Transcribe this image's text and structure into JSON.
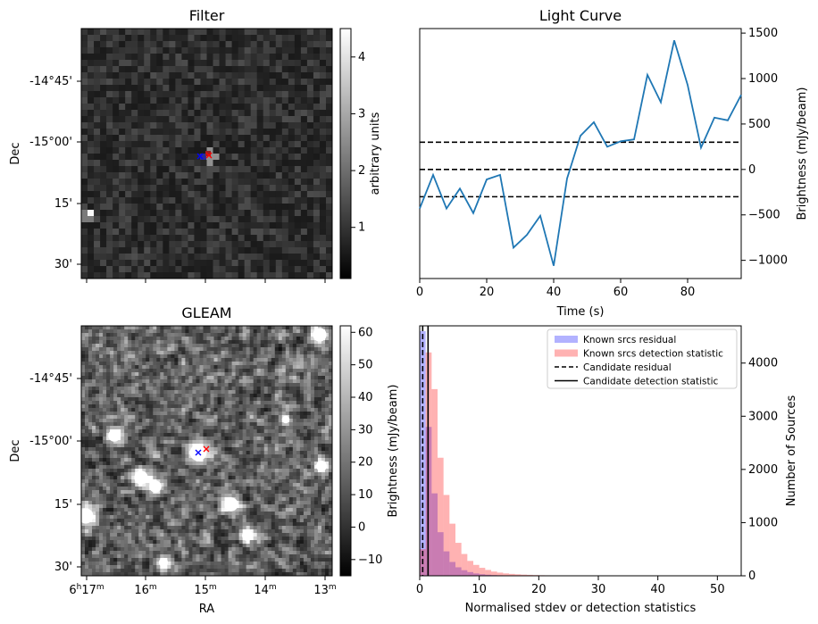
{
  "chart_data": [
    {
      "type": "heatmap",
      "title": "Filter",
      "ylabel": "Dec",
      "colorbar": {
        "label": "arbitrary units",
        "range": [
          0.1,
          4.5
        ],
        "ticks": [
          "1",
          "2",
          "3",
          "4"
        ],
        "tick_values": [
          1,
          2,
          3,
          4
        ],
        "colormap": "gray"
      },
      "y_tick_labels": [
        "-14°45'",
        "-15°00'",
        "15'",
        "30'"
      ],
      "y_tick_values_arcmin": [
        -14.75,
        -15.0,
        -15.25,
        -15.5
      ],
      "markers": [
        {
          "name": "candidate",
          "symbol": "x",
          "color": "#ff0000"
        },
        {
          "name": "known",
          "symbol": "x",
          "color": "#0000ff"
        }
      ]
    },
    {
      "type": "line",
      "title": "Light Curve",
      "xlabel": "Time (s)",
      "ylabel": "Brightness (mJy/beam)",
      "xlim": [
        0,
        96
      ],
      "ylim": [
        -1200,
        1550
      ],
      "x_ticks": [
        0,
        20,
        40,
        60,
        80
      ],
      "y_ticks": [
        -1000,
        -500,
        0,
        500,
        1000,
        1500
      ],
      "x": [
        0,
        4,
        8,
        12,
        16,
        20,
        24,
        28,
        32,
        36,
        40,
        44,
        48,
        52,
        56,
        60,
        64,
        68,
        72,
        76,
        80,
        84,
        88,
        92,
        96
      ],
      "y": [
        -430,
        -60,
        -430,
        -210,
        -480,
        -110,
        -60,
        -860,
        -720,
        -510,
        -1060,
        -100,
        370,
        520,
        250,
        310,
        330,
        1040,
        740,
        1420,
        930,
        240,
        570,
        540,
        820
      ],
      "hlines": [
        300,
        0,
        -300
      ],
      "line_color": "#1f77b4"
    },
    {
      "type": "heatmap",
      "title": "GLEAM",
      "xlabel": "RA",
      "ylabel": "Dec",
      "colorbar": {
        "label": "Brightness (mJy/beam)",
        "range": [
          -15,
          62
        ],
        "ticks": [
          "−10",
          "0",
          "10",
          "20",
          "30",
          "40",
          "50",
          "60"
        ],
        "tick_values": [
          -10,
          0,
          10,
          20,
          30,
          40,
          50,
          60
        ],
        "colormap": "gray"
      },
      "x_tick_labels": [
        "17",
        "16",
        "15",
        "14",
        "13"
      ],
      "x_tick_prefix": "6",
      "y_tick_labels": [
        "-14°45'",
        "-15°00'",
        "15'",
        "30'"
      ],
      "markers": [
        {
          "name": "candidate",
          "symbol": "x",
          "color": "#ff0000"
        },
        {
          "name": "known",
          "symbol": "x",
          "color": "#0000ff"
        }
      ]
    },
    {
      "type": "bar",
      "subtype": "histogram",
      "xlabel": "Normalised stdev or detection statistics",
      "ylabel": "Number of Sources",
      "xlim": [
        0,
        54
      ],
      "ylim": [
        0,
        4700
      ],
      "x_ticks": [
        0,
        10,
        20,
        30,
        40,
        50
      ],
      "y_ticks": [
        0,
        1000,
        2000,
        3000,
        4000
      ],
      "bin_width": 1,
      "series": [
        {
          "name": "Known srcs residual",
          "color": "#0000ff",
          "values": [
            4600,
            2800,
            1550,
            820,
            460,
            260,
            160,
            105,
            70,
            45,
            30,
            20,
            14,
            10,
            7,
            5,
            4,
            3,
            2,
            2,
            1,
            1,
            1,
            1,
            1,
            0,
            0,
            0,
            0,
            0,
            0,
            0,
            0,
            0,
            0,
            0,
            0,
            0,
            0,
            0,
            0,
            0,
            0,
            0,
            0,
            0,
            0,
            0,
            0,
            0,
            0,
            0,
            0,
            0
          ]
        },
        {
          "name": "Known srcs detection statistic",
          "color": "#ff0000",
          "values": [
            500,
            4200,
            3510,
            2220,
            1520,
            980,
            620,
            410,
            280,
            205,
            150,
            110,
            80,
            60,
            45,
            36,
            28,
            22,
            18,
            14,
            11,
            9,
            8,
            7,
            6,
            5,
            5,
            4,
            4,
            3,
            3,
            3,
            2,
            2,
            2,
            2,
            2,
            1,
            1,
            1,
            1,
            1,
            1,
            1,
            1,
            1,
            1,
            0,
            0,
            0,
            0,
            0,
            0,
            0
          ]
        }
      ],
      "vlines": [
        {
          "name": "Candidate residual",
          "x": 0.5,
          "style": "dashed"
        },
        {
          "name": "Candidate detection statistic",
          "x": 1.4,
          "style": "solid"
        }
      ],
      "legend": "top-right"
    }
  ]
}
